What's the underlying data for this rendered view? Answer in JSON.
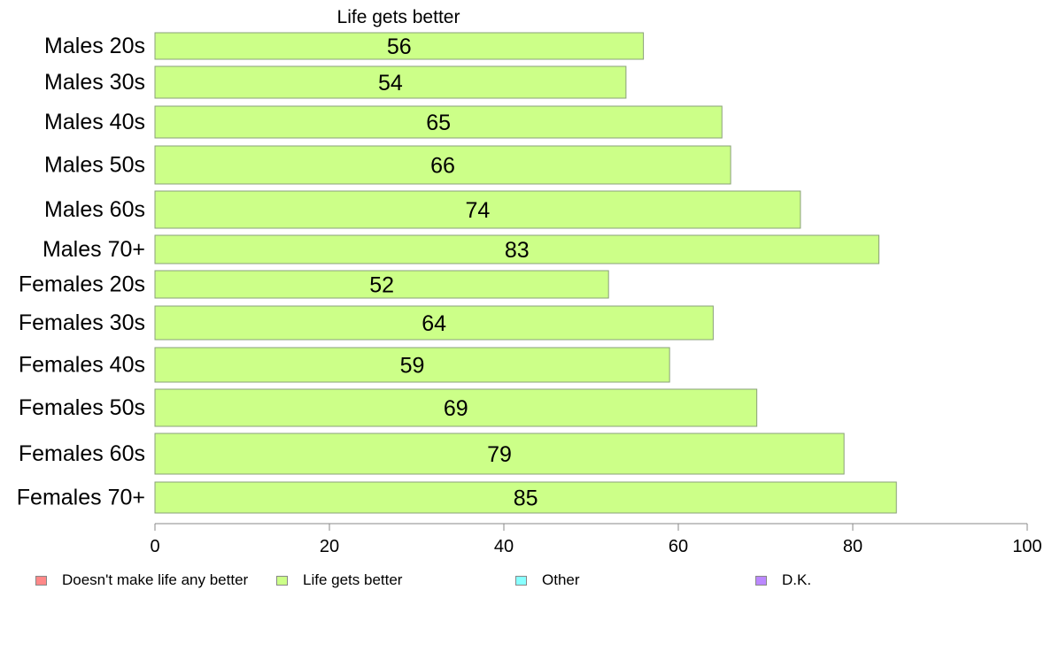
{
  "chart_data": {
    "type": "bar",
    "orientation": "horizontal",
    "title": "Life gets better",
    "categories": [
      "Males 20s",
      "Males 30s",
      "Males 40s",
      "Males 50s",
      "Males 60s",
      "Males 70+",
      "Females 20s",
      "Females 30s",
      "Females 40s",
      "Females 50s",
      "Females 60s",
      "Females 70+"
    ],
    "series": [
      {
        "name": "Life gets better",
        "color": "#ccff88",
        "values": [
          56,
          54,
          65,
          66,
          74,
          83,
          52,
          64,
          59,
          69,
          79,
          85
        ]
      }
    ],
    "xlim": [
      0,
      100
    ],
    "x_ticks": [
      "0",
      "20",
      "40",
      "60",
      "80",
      "100"
    ],
    "grid": false,
    "legend_position": "bottom",
    "legend": [
      {
        "label": "Doesn't make life any better",
        "color": "#ff8888"
      },
      {
        "label": "Life gets better",
        "color": "#ccff88"
      },
      {
        "label": "Other",
        "color": "#88ffff"
      },
      {
        "label": "D.K.",
        "color": "#bb88ff"
      }
    ]
  }
}
